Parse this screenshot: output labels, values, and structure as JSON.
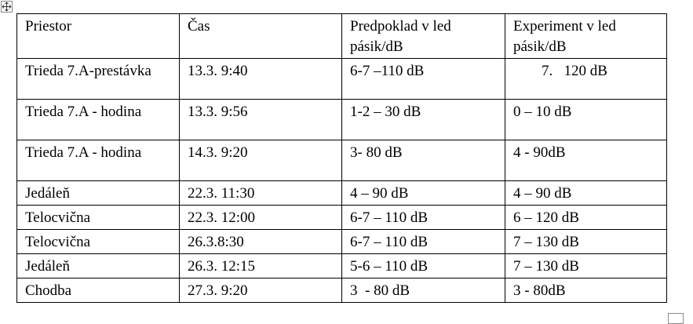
{
  "table": {
    "headers": [
      "Priestor",
      "Čas",
      "Predpoklad v led pásik/dB",
      "Experiment v led pásik/dB"
    ],
    "rows": [
      [
        "Trieda 7.A-prestávka",
        "13.3. 9:40",
        "6-7 –110 dB",
        "7.   120 dB"
      ],
      [
        "Trieda 7.A - hodina",
        "13.3. 9:56",
        "1-2 – 30 dB",
        "0 – 10 dB"
      ],
      [
        "Trieda 7.A - hodina",
        "14.3. 9:20",
        "3- 80 dB",
        "4 - 90dB"
      ],
      [
        "Jedáleň",
        "22.3. 11:30",
        "4 – 90 dB",
        "4 – 90 dB"
      ],
      [
        "Telocvična",
        "22.3. 12:00",
        "6-7 – 110 dB",
        "6 – 120 dB"
      ],
      [
        "Telocvična",
        "26.3.8:30",
        "6-7 – 110 dB",
        "7 – 130 dB"
      ],
      [
        "Jedáleň",
        "26.3. 12:15",
        "5-6 – 110 dB",
        "7 – 130 dB"
      ],
      [
        "Chodba",
        "27.3. 9:20",
        "3  - 80 dB",
        "3 - 80dB"
      ]
    ]
  }
}
